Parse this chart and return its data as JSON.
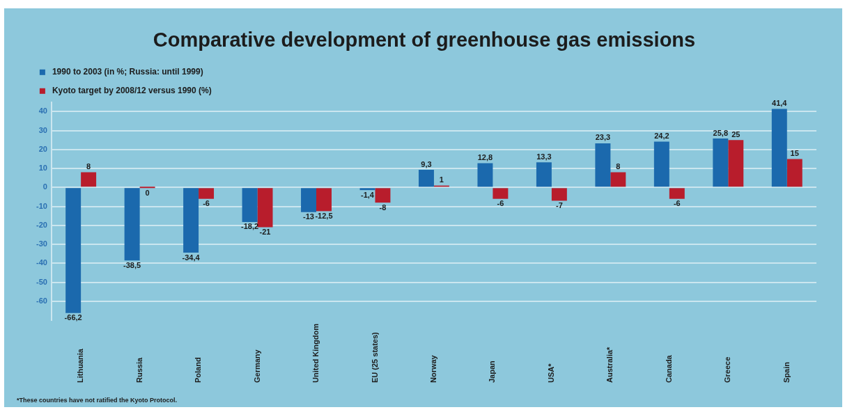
{
  "chart_data": {
    "type": "bar",
    "title": "Comparative development of greenhouse gas emissions",
    "categories": [
      "Lithuania",
      "Russia",
      "Poland",
      "Germany",
      "United Kingdom",
      "EU (25 states)",
      "Norway",
      "Japan",
      "USA*",
      "Australia*",
      "Canada",
      "Greece",
      "Spain"
    ],
    "series": [
      {
        "name": "1990 to 2003 (in %; Russia: until 1999)",
        "color": "#1b69ad",
        "values": [
          -66.2,
          -38.5,
          -34.4,
          -18.2,
          -13,
          -1.4,
          9.3,
          12.8,
          13.3,
          23.3,
          24.2,
          25.8,
          41.4
        ],
        "value_labels": [
          "-66,2",
          "-38,5",
          "-34,4",
          "-18,2",
          "-13",
          "-1,4",
          "9,3",
          "12,8",
          "13,3",
          "23,3",
          "24,2",
          "25,8",
          "41,4"
        ]
      },
      {
        "name": "Kyoto target by 2008/12 versus 1990 (%)",
        "color": "#b81d2c",
        "values": [
          8,
          0,
          -6,
          -21,
          -12.5,
          -8,
          1,
          -6,
          -7,
          8,
          -6,
          25,
          15
        ],
        "value_labels": [
          "8",
          "0",
          "-6",
          "-21",
          "-12,5",
          "-8",
          "1",
          "-6",
          "-7",
          "8",
          "-6",
          "25",
          "15"
        ]
      }
    ],
    "ylim": [
      -70,
      45
    ],
    "yticks": [
      -60,
      -50,
      -40,
      -30,
      -20,
      -10,
      0,
      10,
      20,
      30,
      40
    ],
    "grid": "y",
    "legend": "top left",
    "annotations": [
      "*These countries have not ratified the Kyoto Protocol."
    ]
  }
}
